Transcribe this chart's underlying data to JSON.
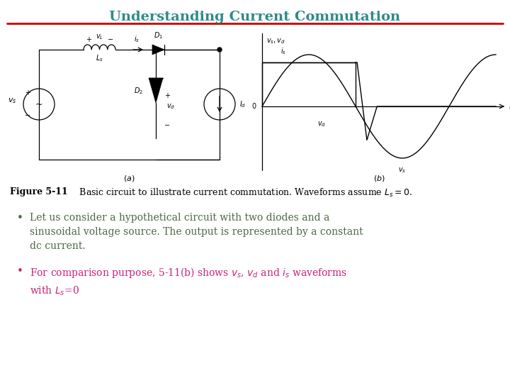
{
  "title": "Understanding Current Commutation",
  "title_color": "#2E8B8B",
  "title_fontsize": 14,
  "underline_color": "#CC0000",
  "bg_color": "#FFFFFF",
  "bullet1_color": "#4A6741",
  "bullet2_color": "#CC2277",
  "bullet1_text_line1": "Let us consider a hypothetical circuit with two diodes and a",
  "bullet1_text_line2": "sinusoidal voltage source. The output is represented by a constant",
  "bullet1_text_line3": "dc current.",
  "bullet2_text_line1": "For comparison purpose, 5-11(b) shows $v_s$, $v_d$ and $i_s$ waveforms",
  "bullet2_text_line2": "with $L_s$=0",
  "fig_caption_bold": "Figure 5-11",
  "fig_caption_normal": "   Basic circuit to illustrate current commutation. Waveforms assume $L_s = 0$.",
  "bullet_fontsize": 10,
  "caption_fontsize": 9
}
